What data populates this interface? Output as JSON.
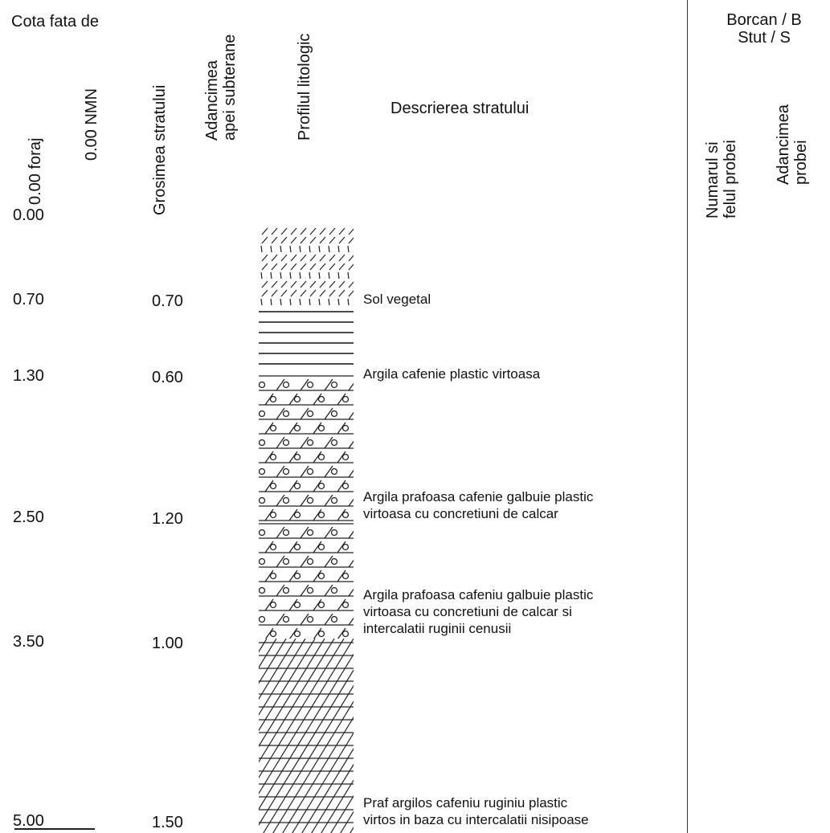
{
  "header": {
    "cota_title": "Cota fata de",
    "col_foraj": "0.00 foraj",
    "col_nmn": "0.00 NMN",
    "col_grosime": "Grosimea stratului",
    "col_apa": [
      "Adancimea",
      "apei subterane"
    ],
    "col_profil": "Profilul litologic",
    "col_descriere": "Descrierea stratului",
    "proba_title": [
      "Borcan / B",
      "Stut / S"
    ],
    "col_numar": [
      "Numarul si",
      "felul probei"
    ],
    "col_adancime": [
      "Adancimea",
      "probei"
    ]
  },
  "layers": [
    {
      "depth": "0.00",
      "thickness": "",
      "description": []
    },
    {
      "depth": "0.70",
      "thickness": "0.70",
      "description": [
        "Sol vegetal"
      ],
      "pattern": "vegetal-soil"
    },
    {
      "depth": "1.30",
      "thickness": "0.60",
      "description": [
        "Argila cafenie plastic virtoasa"
      ],
      "pattern": "clay"
    },
    {
      "depth": "2.50",
      "thickness": "1.20",
      "description": [
        "Argila prafoasa cafenie galbuie plastic",
        "virtoasa cu concretiuni de calcar"
      ],
      "pattern": "silty-clay-concretions"
    },
    {
      "depth": "3.50",
      "thickness": "1.00",
      "description": [
        "Argila prafoasa cafeniu galbuie plastic",
        "virtoasa cu concretiuni de calcar si",
        "intercalatii ruginii cenusii"
      ],
      "pattern": "silty-clay-concretions-rust"
    },
    {
      "depth": "5.00",
      "thickness": "1.50",
      "description": [
        "Praf argilos cafeniu ruginiu plastic",
        "virtos in baza cu intercalatii nisipoase"
      ],
      "pattern": "clayey-silt"
    }
  ]
}
